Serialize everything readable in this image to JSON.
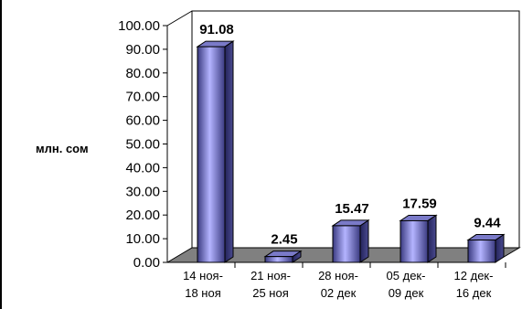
{
  "chart_data": {
    "type": "bar",
    "categories": [
      [
        "14 ноя-",
        "18 ноя"
      ],
      [
        "21 ноя-",
        "25 ноя"
      ],
      [
        "28 ноя-",
        "02 дек"
      ],
      [
        "05 дек-",
        "09 дек"
      ],
      [
        "12 дек-",
        "16 дек"
      ]
    ],
    "values": [
      91.08,
      2.45,
      15.47,
      17.59,
      9.44
    ],
    "value_labels": [
      "91.08",
      "2.45",
      "15.47",
      "17.59",
      "9.44"
    ],
    "ylabel": "млн. сом",
    "ylim": [
      0,
      100
    ],
    "yticks": [
      "0.00",
      "10.00",
      "20.00",
      "30.00",
      "40.00",
      "50.00",
      "60.00",
      "70.00",
      "80.00",
      "90.00",
      "100.00"
    ],
    "grid": false,
    "three_d": true,
    "colors": {
      "bar_front_light": "#b4b4ff",
      "bar_front_dark": "#353575",
      "bar_side": "#2a2a66",
      "bar_top": "#7a7ac8",
      "floor": "#808080",
      "wall": "#ffffff",
      "outline": "#000000"
    }
  }
}
